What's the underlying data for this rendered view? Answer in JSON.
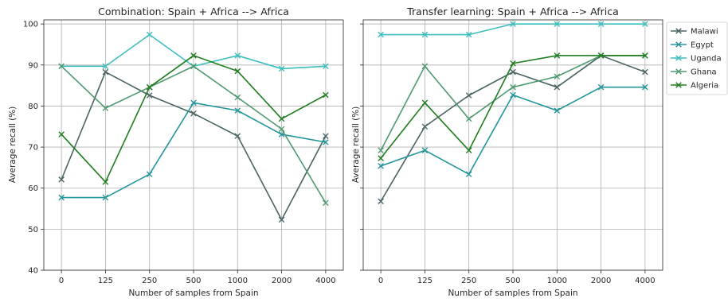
{
  "chart_data": [
    {
      "type": "line",
      "title": "Combination: Spain + Africa --> Africa",
      "xlabel": "Number of samples from Spain",
      "ylabel": "Average recall (%)",
      "categories": [
        "0",
        "125",
        "250",
        "500",
        "1000",
        "2000",
        "4000"
      ],
      "ylim": [
        40,
        101
      ],
      "yticks": [
        "40",
        "50",
        "60",
        "70",
        "80",
        "90",
        "100"
      ],
      "grid": true,
      "series": [
        {
          "name": "Malawi",
          "color": "#4b6464",
          "values": [
            62.1,
            88.3,
            82.6,
            78.2,
            72.7,
            52.3,
            72.7
          ]
        },
        {
          "name": "Egypt",
          "color": "#23969b",
          "values": [
            57.7,
            57.7,
            63.4,
            80.8,
            78.9,
            73.1,
            71.2
          ]
        },
        {
          "name": "Uganda",
          "color": "#3dbfbf",
          "values": [
            89.7,
            89.7,
            97.4,
            89.7,
            92.3,
            89.1,
            89.7
          ]
        },
        {
          "name": "Ghana",
          "color": "#4e9a70",
          "values": [
            89.7,
            79.5,
            84.6,
            89.7,
            82.1,
            74.4,
            56.4
          ]
        },
        {
          "name": "Algeria",
          "color": "#1e7d1e",
          "values": [
            73.1,
            61.5,
            84.6,
            92.3,
            88.5,
            76.9,
            82.7
          ]
        }
      ]
    },
    {
      "type": "line",
      "title": "Transfer learning: Spain + Africa --> Africa",
      "xlabel": "Number of samples from Spain",
      "ylabel": "Average recall (%)",
      "categories": [
        "0",
        "125",
        "250",
        "500",
        "1000",
        "2000",
        "4000"
      ],
      "ylim": [
        40,
        101
      ],
      "grid": true,
      "legend_position": "outside-right",
      "series": [
        {
          "name": "Malawi",
          "color": "#4b6464",
          "values": [
            56.8,
            75.0,
            82.6,
            88.3,
            84.6,
            92.3,
            88.3
          ]
        },
        {
          "name": "Egypt",
          "color": "#23969b",
          "values": [
            65.4,
            69.2,
            63.4,
            82.7,
            78.9,
            84.6,
            84.6
          ]
        },
        {
          "name": "Uganda",
          "color": "#3dbfbf",
          "values": [
            97.4,
            97.4,
            97.4,
            100,
            100,
            100,
            100
          ]
        },
        {
          "name": "Ghana",
          "color": "#4e9a70",
          "values": [
            69.2,
            89.7,
            76.9,
            84.6,
            87.2,
            92.3,
            92.3
          ]
        },
        {
          "name": "Algeria",
          "color": "#1e7d1e",
          "values": [
            67.3,
            80.8,
            69.2,
            90.4,
            92.3,
            92.3,
            92.3
          ]
        }
      ]
    }
  ]
}
